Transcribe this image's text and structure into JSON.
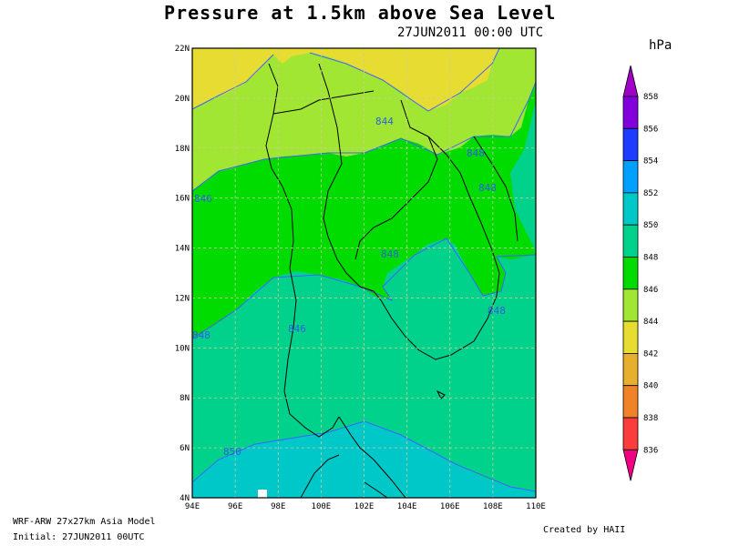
{
  "header": {
    "title": "Pressure at 1.5km above Sea Level",
    "datetime": "27JUN2011 00:00 UTC",
    "units": "hPa"
  },
  "map": {
    "x_ticks": [
      "94E",
      "96E",
      "98E",
      "100E",
      "102E",
      "104E",
      "106E",
      "108E",
      "110E"
    ],
    "y_ticks": [
      "22N",
      "20N",
      "18N",
      "16N",
      "14N",
      "12N",
      "10N",
      "8N",
      "6N",
      "4N"
    ],
    "contour_labels": [
      "844",
      "846",
      "846",
      "848",
      "848",
      "848",
      "848",
      "848",
      "850"
    ],
    "colors": {
      "c842_844": "#e6dc32",
      "c844_846": "#a0e632",
      "c846_848": "#00dc00",
      "c848_850": "#00d28c",
      "c850_852": "#00c8c8",
      "contour_line": "#3c64ff",
      "label": "#2f5fe0",
      "grid": "#cccc99"
    }
  },
  "colorbar": {
    "levels": [
      "858",
      "856",
      "854",
      "852",
      "850",
      "848",
      "846",
      "844",
      "842",
      "840",
      "838",
      "836"
    ],
    "colors": [
      "#a000c8",
      "#8200dc",
      "#1e3cff",
      "#00a0ff",
      "#00c8c8",
      "#00d28c",
      "#00dc00",
      "#a0e632",
      "#e6dc32",
      "#e6af2d",
      "#f08228",
      "#fa3c3c",
      "#f00082"
    ]
  },
  "footer": {
    "model": "WRF-ARW 27x27km Asia Model",
    "initial": "Initial: 27JUN2011 00UTC",
    "credit": "Created by HAII"
  }
}
